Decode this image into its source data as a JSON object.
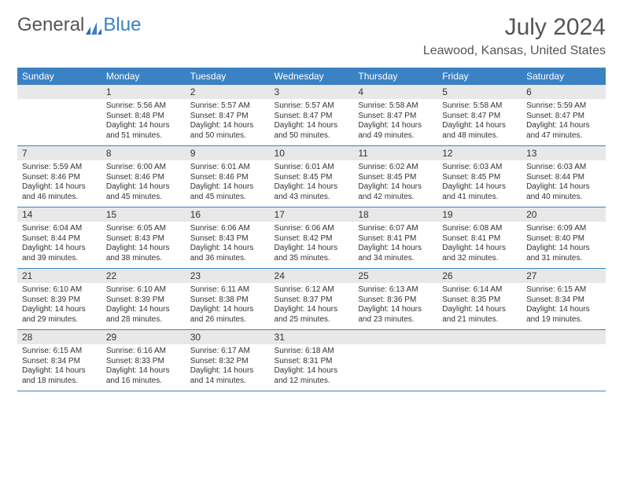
{
  "logo": {
    "text1": "General",
    "text2": "Blue"
  },
  "title": "July 2024",
  "location": "Leawood, Kansas, United States",
  "colors": {
    "header_bg": "#3b82c4",
    "header_text": "#ffffff",
    "daynum_bg": "#e8e8e8",
    "row_border": "#3b82c4",
    "body_text": "#333333",
    "title_text": "#555555"
  },
  "day_labels": [
    "Sunday",
    "Monday",
    "Tuesday",
    "Wednesday",
    "Thursday",
    "Friday",
    "Saturday"
  ],
  "weeks": [
    [
      {
        "n": "",
        "sr": "",
        "ss": "",
        "dl": ""
      },
      {
        "n": "1",
        "sr": "Sunrise: 5:56 AM",
        "ss": "Sunset: 8:48 PM",
        "dl": "Daylight: 14 hours and 51 minutes."
      },
      {
        "n": "2",
        "sr": "Sunrise: 5:57 AM",
        "ss": "Sunset: 8:47 PM",
        "dl": "Daylight: 14 hours and 50 minutes."
      },
      {
        "n": "3",
        "sr": "Sunrise: 5:57 AM",
        "ss": "Sunset: 8:47 PM",
        "dl": "Daylight: 14 hours and 50 minutes."
      },
      {
        "n": "4",
        "sr": "Sunrise: 5:58 AM",
        "ss": "Sunset: 8:47 PM",
        "dl": "Daylight: 14 hours and 49 minutes."
      },
      {
        "n": "5",
        "sr": "Sunrise: 5:58 AM",
        "ss": "Sunset: 8:47 PM",
        "dl": "Daylight: 14 hours and 48 minutes."
      },
      {
        "n": "6",
        "sr": "Sunrise: 5:59 AM",
        "ss": "Sunset: 8:47 PM",
        "dl": "Daylight: 14 hours and 47 minutes."
      }
    ],
    [
      {
        "n": "7",
        "sr": "Sunrise: 5:59 AM",
        "ss": "Sunset: 8:46 PM",
        "dl": "Daylight: 14 hours and 46 minutes."
      },
      {
        "n": "8",
        "sr": "Sunrise: 6:00 AM",
        "ss": "Sunset: 8:46 PM",
        "dl": "Daylight: 14 hours and 45 minutes."
      },
      {
        "n": "9",
        "sr": "Sunrise: 6:01 AM",
        "ss": "Sunset: 8:46 PM",
        "dl": "Daylight: 14 hours and 45 minutes."
      },
      {
        "n": "10",
        "sr": "Sunrise: 6:01 AM",
        "ss": "Sunset: 8:45 PM",
        "dl": "Daylight: 14 hours and 43 minutes."
      },
      {
        "n": "11",
        "sr": "Sunrise: 6:02 AM",
        "ss": "Sunset: 8:45 PM",
        "dl": "Daylight: 14 hours and 42 minutes."
      },
      {
        "n": "12",
        "sr": "Sunrise: 6:03 AM",
        "ss": "Sunset: 8:45 PM",
        "dl": "Daylight: 14 hours and 41 minutes."
      },
      {
        "n": "13",
        "sr": "Sunrise: 6:03 AM",
        "ss": "Sunset: 8:44 PM",
        "dl": "Daylight: 14 hours and 40 minutes."
      }
    ],
    [
      {
        "n": "14",
        "sr": "Sunrise: 6:04 AM",
        "ss": "Sunset: 8:44 PM",
        "dl": "Daylight: 14 hours and 39 minutes."
      },
      {
        "n": "15",
        "sr": "Sunrise: 6:05 AM",
        "ss": "Sunset: 8:43 PM",
        "dl": "Daylight: 14 hours and 38 minutes."
      },
      {
        "n": "16",
        "sr": "Sunrise: 6:06 AM",
        "ss": "Sunset: 8:43 PM",
        "dl": "Daylight: 14 hours and 36 minutes."
      },
      {
        "n": "17",
        "sr": "Sunrise: 6:06 AM",
        "ss": "Sunset: 8:42 PM",
        "dl": "Daylight: 14 hours and 35 minutes."
      },
      {
        "n": "18",
        "sr": "Sunrise: 6:07 AM",
        "ss": "Sunset: 8:41 PM",
        "dl": "Daylight: 14 hours and 34 minutes."
      },
      {
        "n": "19",
        "sr": "Sunrise: 6:08 AM",
        "ss": "Sunset: 8:41 PM",
        "dl": "Daylight: 14 hours and 32 minutes."
      },
      {
        "n": "20",
        "sr": "Sunrise: 6:09 AM",
        "ss": "Sunset: 8:40 PM",
        "dl": "Daylight: 14 hours and 31 minutes."
      }
    ],
    [
      {
        "n": "21",
        "sr": "Sunrise: 6:10 AM",
        "ss": "Sunset: 8:39 PM",
        "dl": "Daylight: 14 hours and 29 minutes."
      },
      {
        "n": "22",
        "sr": "Sunrise: 6:10 AM",
        "ss": "Sunset: 8:39 PM",
        "dl": "Daylight: 14 hours and 28 minutes."
      },
      {
        "n": "23",
        "sr": "Sunrise: 6:11 AM",
        "ss": "Sunset: 8:38 PM",
        "dl": "Daylight: 14 hours and 26 minutes."
      },
      {
        "n": "24",
        "sr": "Sunrise: 6:12 AM",
        "ss": "Sunset: 8:37 PM",
        "dl": "Daylight: 14 hours and 25 minutes."
      },
      {
        "n": "25",
        "sr": "Sunrise: 6:13 AM",
        "ss": "Sunset: 8:36 PM",
        "dl": "Daylight: 14 hours and 23 minutes."
      },
      {
        "n": "26",
        "sr": "Sunrise: 6:14 AM",
        "ss": "Sunset: 8:35 PM",
        "dl": "Daylight: 14 hours and 21 minutes."
      },
      {
        "n": "27",
        "sr": "Sunrise: 6:15 AM",
        "ss": "Sunset: 8:34 PM",
        "dl": "Daylight: 14 hours and 19 minutes."
      }
    ],
    [
      {
        "n": "28",
        "sr": "Sunrise: 6:15 AM",
        "ss": "Sunset: 8:34 PM",
        "dl": "Daylight: 14 hours and 18 minutes."
      },
      {
        "n": "29",
        "sr": "Sunrise: 6:16 AM",
        "ss": "Sunset: 8:33 PM",
        "dl": "Daylight: 14 hours and 16 minutes."
      },
      {
        "n": "30",
        "sr": "Sunrise: 6:17 AM",
        "ss": "Sunset: 8:32 PM",
        "dl": "Daylight: 14 hours and 14 minutes."
      },
      {
        "n": "31",
        "sr": "Sunrise: 6:18 AM",
        "ss": "Sunset: 8:31 PM",
        "dl": "Daylight: 14 hours and 12 minutes."
      },
      {
        "n": "",
        "sr": "",
        "ss": "",
        "dl": ""
      },
      {
        "n": "",
        "sr": "",
        "ss": "",
        "dl": ""
      },
      {
        "n": "",
        "sr": "",
        "ss": "",
        "dl": ""
      }
    ]
  ]
}
